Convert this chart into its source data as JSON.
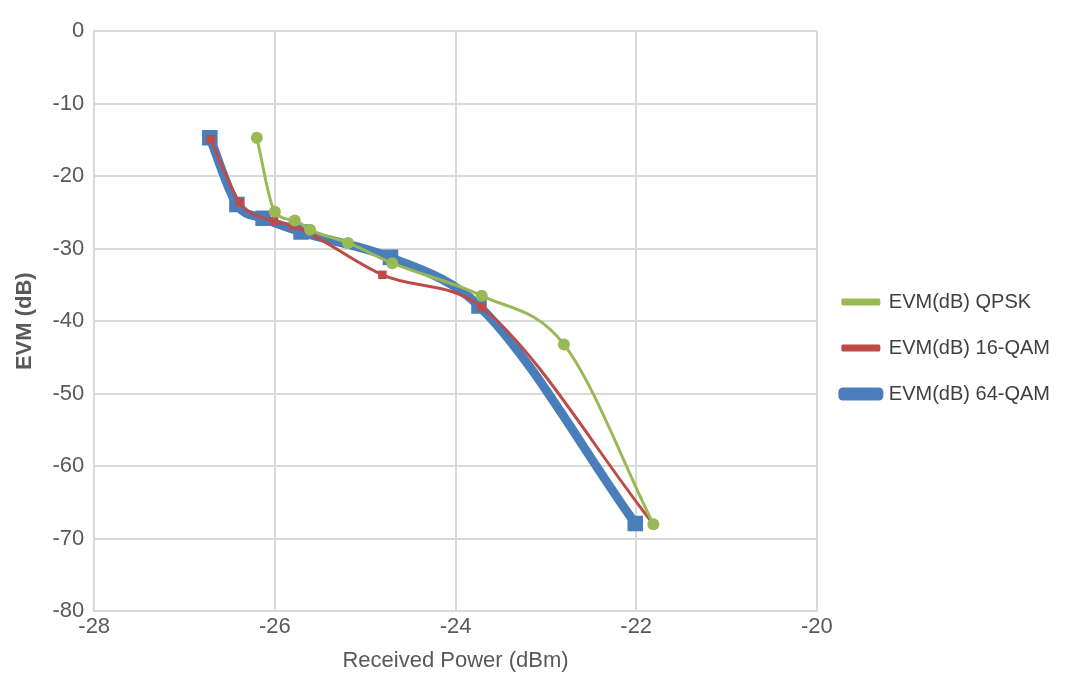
{
  "chart_data": {
    "type": "line",
    "xlabel": "Received Power (dBm)",
    "ylabel": "EVM (dB)",
    "xlim": [
      -28,
      -20
    ],
    "xticks": [
      -28,
      -26,
      -24,
      -22,
      -20
    ],
    "ylim": [
      -80,
      0
    ],
    "yticks": [
      -80,
      -70,
      -60,
      -50,
      -40,
      -30,
      -20,
      -10,
      0
    ],
    "grid": true,
    "legend": "right",
    "series": [
      {
        "name": "EVM(dB) 64-QAM",
        "color": "#4a7ebb",
        "marker": "square",
        "x": [
          -26.72,
          -26.42,
          -26.13,
          -25.71,
          -24.72,
          -23.74,
          -22.01
        ],
        "values": [
          -14.7,
          -23.9,
          -25.8,
          -27.7,
          -31.2,
          -37.9,
          -67.9
        ]
      },
      {
        "name": "EVM(dB) 16-QAM",
        "color": "#be4b48",
        "marker": "square",
        "x": [
          -26.71,
          -26.39,
          -26.01,
          -25.8,
          -24.81,
          -23.71,
          -21.81
        ],
        "values": [
          -14.9,
          -23.6,
          -26.2,
          -26.8,
          -33.6,
          -38.1,
          -68.0
        ]
      },
      {
        "name": "EVM(dB) QPSK",
        "color": "#98b954",
        "marker": "circle",
        "x": [
          -26.2,
          -26.0,
          -25.78,
          -25.61,
          -25.19,
          -24.7,
          -23.71,
          -22.8,
          -21.81
        ],
        "values": [
          -14.7,
          -24.9,
          -26.1,
          -27.4,
          -29.2,
          -32.0,
          -36.5,
          -43.2,
          -68.0
        ]
      }
    ]
  }
}
